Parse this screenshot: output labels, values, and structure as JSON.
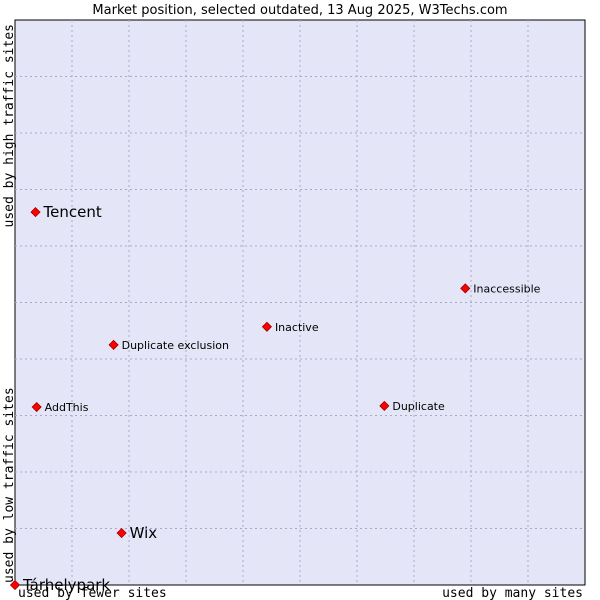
{
  "chart_data": {
    "type": "scatter",
    "title": "Market position, selected outdated, 13 Aug 2025, W3Techs.com",
    "xlabel_left": "used by fewer sites",
    "xlabel_right": "used by many sites",
    "ylabel_bottom": "used by low traffic sites",
    "ylabel_top": "used by high traffic sites",
    "xlim": [
      0,
      10
    ],
    "ylim": [
      0,
      10
    ],
    "grid": true,
    "colors": {
      "plot_background": "#e4e6f8",
      "grid": "#a8a8c8",
      "marker": "#ff0000",
      "marker_edge": "#990000"
    },
    "points": [
      {
        "label": "Tencent",
        "x": 0.36,
        "y": 6.6,
        "size": "large"
      },
      {
        "label": "Inaccessible",
        "x": 7.9,
        "y": 5.25,
        "size": "small"
      },
      {
        "label": "Inactive",
        "x": 4.42,
        "y": 4.57,
        "size": "small"
      },
      {
        "label": "Duplicate exclusion",
        "x": 1.73,
        "y": 4.25,
        "size": "small"
      },
      {
        "label": "AddThis",
        "x": 0.38,
        "y": 3.15,
        "size": "small"
      },
      {
        "label": "Duplicate",
        "x": 6.48,
        "y": 3.17,
        "size": "small"
      },
      {
        "label": "Wix",
        "x": 1.87,
        "y": 0.92,
        "size": "large"
      },
      {
        "label": "Tárhelypark",
        "x": 0.0,
        "y": 0.0,
        "size": "large"
      }
    ]
  }
}
